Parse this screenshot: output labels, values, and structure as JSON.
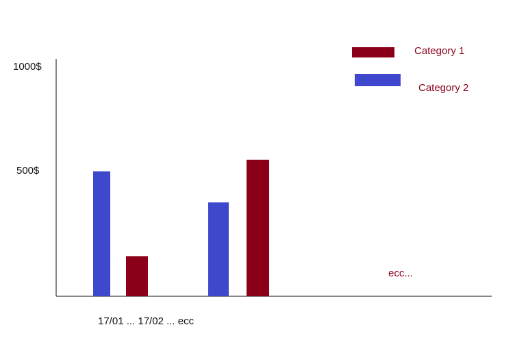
{
  "colors": {
    "category_1": "#8b0018",
    "category_2": "#3f48cc",
    "axis": "#111111",
    "text": "#111111",
    "legend_text": "#8b0018"
  },
  "chart_data": {
    "type": "bar",
    "title": "",
    "xlabel": "",
    "ylabel": "",
    "ylim": [
      0,
      1000
    ],
    "y_tick_labels": [
      "1000$",
      "500$"
    ],
    "y_ticks": [
      1000,
      500
    ],
    "x_axis_caption": "17/01 ... 17/02 ... ecc",
    "legend": {
      "placement": "top-right"
    },
    "series": [
      {
        "name": "Category 1",
        "color": "#8b0018"
      },
      {
        "name": "Category 2",
        "color": "#3f48cc"
      }
    ],
    "bars": [
      {
        "series": "Category 2",
        "value": 545
      },
      {
        "series": "Category 1",
        "value": 175
      },
      {
        "series": "Category 2",
        "value": 410
      },
      {
        "series": "Category 1",
        "value": 595
      }
    ],
    "annotation": "ecc..."
  }
}
